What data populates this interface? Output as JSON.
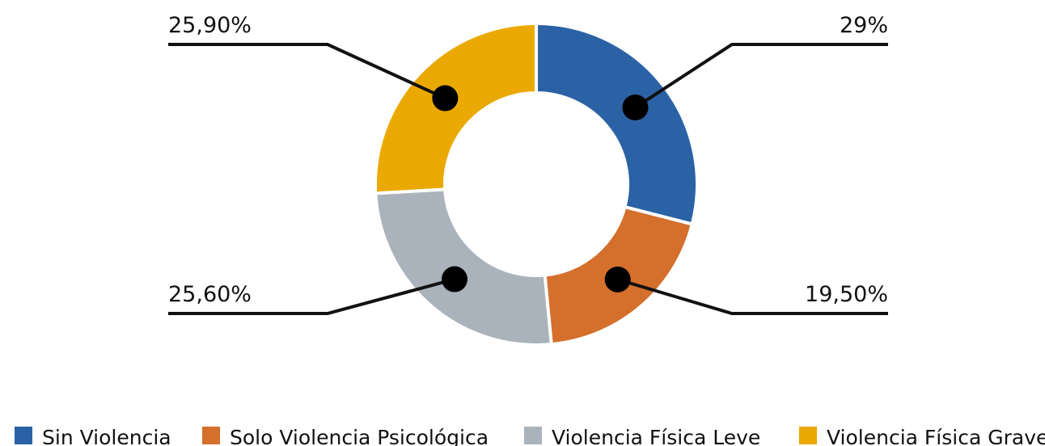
{
  "chart_data": {
    "type": "donut",
    "categories": [
      "Sin Violencia",
      "Solo Violencia Psicológica",
      "Violencia Física Leve",
      "Violencia Física Grave"
    ],
    "values": [
      29,
      19.5,
      25.6,
      25.9
    ],
    "value_labels": [
      "29%",
      "19,50%",
      "25,60%",
      "25,90%"
    ],
    "colors": [
      "#2b62a6",
      "#d46f2c",
      "#aab3bb",
      "#eaa900"
    ],
    "legend": "bottom"
  }
}
